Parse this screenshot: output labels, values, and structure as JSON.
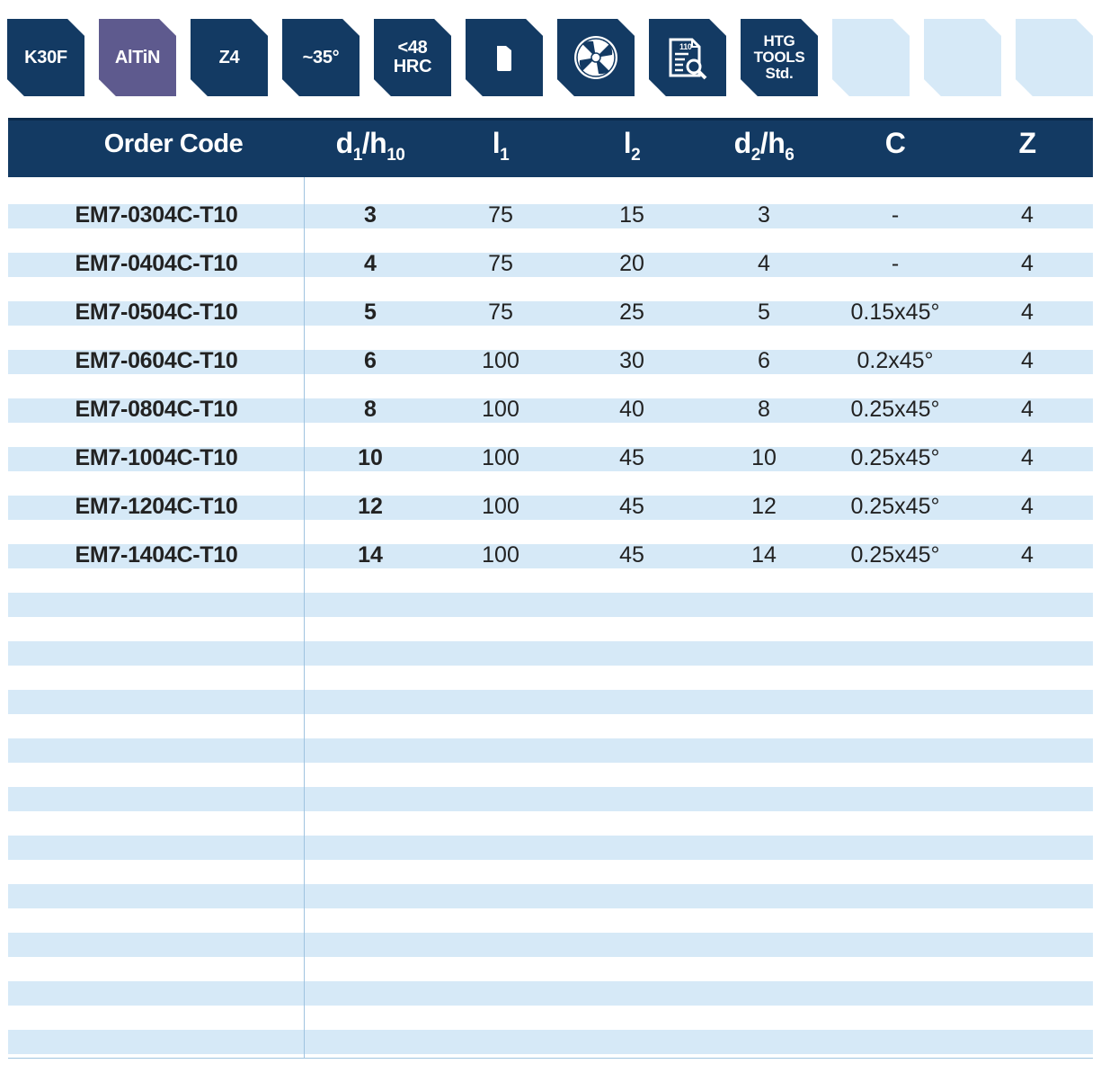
{
  "badges": [
    {
      "id": "material",
      "label": "K30F",
      "style": "dark"
    },
    {
      "id": "coating",
      "label": "AlTiN",
      "style": "purple"
    },
    {
      "id": "flutes",
      "label": "Z4",
      "style": "dark"
    },
    {
      "id": "helix",
      "label": "~35°",
      "style": "dark"
    },
    {
      "id": "hardness",
      "line1": "<48",
      "line2": "HRC",
      "style": "dark"
    },
    {
      "id": "shank",
      "icon": "cylindrical-shank-icon",
      "style": "dark"
    },
    {
      "id": "cross-section",
      "icon": "end-mill-cross-section-icon",
      "style": "dark"
    },
    {
      "id": "standard-doc",
      "icon": "document-inspection-icon",
      "doc_number": "110",
      "style": "dark"
    },
    {
      "id": "htg",
      "line1": "HTG",
      "line2": "TOOLS",
      "line3": "Std.",
      "style": "dark"
    },
    {
      "id": "empty-1",
      "style": "empty"
    },
    {
      "id": "empty-2",
      "style": "empty"
    },
    {
      "id": "empty-3",
      "style": "empty"
    }
  ],
  "table": {
    "headers": {
      "order_code": "Order Code",
      "d1": {
        "main": "d",
        "sub": "1",
        "sep": "/",
        "tol": "h",
        "tol_sub": "10"
      },
      "l1": {
        "main": "l",
        "sub": "1"
      },
      "l2": {
        "main": "l",
        "sub": "2"
      },
      "d2": {
        "main": "d",
        "sub": "2",
        "sep": "/",
        "tol": "h",
        "tol_sub": "6"
      },
      "c": "C",
      "z": "Z"
    },
    "rows": [
      {
        "code": "EM7-0304C-T10",
        "d1": "3",
        "l1": "75",
        "l2": "15",
        "d2": "3",
        "c": "-",
        "z": "4"
      },
      {
        "code": "EM7-0404C-T10",
        "d1": "4",
        "l1": "75",
        "l2": "20",
        "d2": "4",
        "c": "-",
        "z": "4"
      },
      {
        "code": "EM7-0504C-T10",
        "d1": "5",
        "l1": "75",
        "l2": "25",
        "d2": "5",
        "c": "0.15x45°",
        "z": "4"
      },
      {
        "code": "EM7-0604C-T10",
        "d1": "6",
        "l1": "100",
        "l2": "30",
        "d2": "6",
        "c": "0.2x45°",
        "z": "4"
      },
      {
        "code": "EM7-0804C-T10",
        "d1": "8",
        "l1": "100",
        "l2": "40",
        "d2": "8",
        "c": "0.25x45°",
        "z": "4"
      },
      {
        "code": "EM7-1004C-T10",
        "d1": "10",
        "l1": "100",
        "l2": "45",
        "d2": "10",
        "c": "0.25x45°",
        "z": "4"
      },
      {
        "code": "EM7-1204C-T10",
        "d1": "12",
        "l1": "100",
        "l2": "45",
        "d2": "12",
        "c": "0.25x45°",
        "z": "4"
      },
      {
        "code": "EM7-1404C-T10",
        "d1": "14",
        "l1": "100",
        "l2": "45",
        "d2": "14",
        "c": "0.25x45°",
        "z": "4"
      }
    ]
  },
  "colors": {
    "navy": "#133a63",
    "purple": "#5e5a8e",
    "stripe": "#d6e9f7",
    "rule": "#9fc3df"
  }
}
